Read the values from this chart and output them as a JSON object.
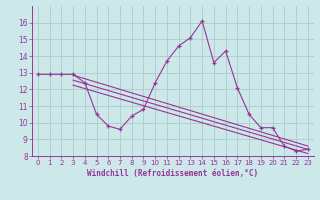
{
  "x": [
    0,
    1,
    2,
    3,
    4,
    5,
    6,
    7,
    8,
    9,
    10,
    11,
    12,
    13,
    14,
    15,
    16,
    17,
    18,
    19,
    20,
    21,
    22,
    23
  ],
  "y_main": [
    12.9,
    12.9,
    12.9,
    12.9,
    12.4,
    10.5,
    9.8,
    9.6,
    10.4,
    10.8,
    12.4,
    13.7,
    14.6,
    15.1,
    16.1,
    13.6,
    14.3,
    12.1,
    10.5,
    9.7,
    9.7,
    8.6,
    8.3,
    8.4
  ],
  "line1_start": 12.85,
  "line1_end": 8.6,
  "line2_start": 12.55,
  "line2_end": 8.4,
  "line3_start": 12.25,
  "line3_end": 8.15,
  "line_color": "#993399",
  "bg_color": "#cce8e8",
  "grid_color": "#aacccc",
  "axis_color": "#993399",
  "tick_color": "#993399",
  "xlabel": "Windchill (Refroidissement éolien,°C)",
  "ylim": [
    8,
    17
  ],
  "xlim": [
    -0.5,
    23.5
  ],
  "yticks": [
    8,
    9,
    10,
    11,
    12,
    13,
    14,
    15,
    16
  ],
  "xticks": [
    0,
    1,
    2,
    3,
    4,
    5,
    6,
    7,
    8,
    9,
    10,
    11,
    12,
    13,
    14,
    15,
    16,
    17,
    18,
    19,
    20,
    21,
    22,
    23
  ],
  "line_start_x": 3,
  "line_end_x": 23
}
